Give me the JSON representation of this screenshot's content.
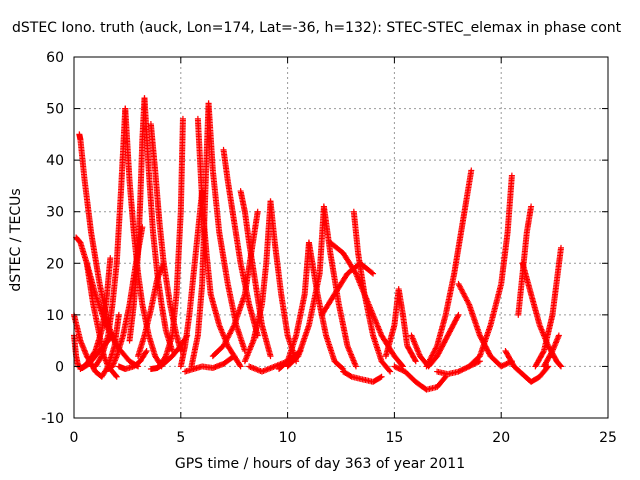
{
  "chart_data": {
    "type": "scatter",
    "title": "dSTEC Iono. truth (auck, Lon=174, Lat=-36, h=132): STEC-STEC_elemax in phase cont",
    "xlabel": "GPS time / hours of day 363 of year 2011",
    "ylabel": "dSTEC  / TECUs",
    "xlim": [
      0,
      25
    ],
    "ylim": [
      -10,
      60
    ],
    "xticks": [
      "0",
      "5",
      "10",
      "15",
      "20",
      "25"
    ],
    "yticks": [
      "-10",
      "0",
      "10",
      "20",
      "30",
      "40",
      "50",
      "60"
    ],
    "grid": true,
    "marker": "+",
    "color": "#ff0000",
    "arcs": [
      {
        "x": [
          0.0,
          0.1,
          0.2,
          0.4,
          0.7,
          1.0,
          1.4,
          1.8
        ],
        "y": [
          6,
          2,
          0,
          -0.3,
          0.5,
          2,
          4,
          6
        ]
      },
      {
        "x": [
          0.1,
          0.3,
          0.6,
          1.0,
          1.5,
          2.0,
          2.6,
          3.0
        ],
        "y": [
          25,
          24,
          20,
          14,
          8,
          4,
          1,
          0
        ]
      },
      {
        "x": [
          0.25,
          0.3,
          0.5,
          0.8,
          1.2,
          1.6,
          2.0
        ],
        "y": [
          45,
          44,
          36,
          26,
          16,
          8,
          4
        ]
      },
      {
        "x": [
          0.0,
          0.3,
          0.6,
          1.0,
          1.3,
          1.6,
          1.9,
          2.1
        ],
        "y": [
          10,
          5,
          2,
          -1,
          -2,
          0,
          4,
          10
        ]
      },
      {
        "x": [
          0.3,
          0.6,
          1.0,
          1.3,
          1.5,
          1.7
        ],
        "y": [
          -0.5,
          0.5,
          3,
          7,
          12,
          21
        ]
      },
      {
        "x": [
          0.6,
          0.9,
          1.2,
          1.4,
          1.6,
          1.8,
          2.0
        ],
        "y": [
          20,
          12,
          6,
          2,
          0,
          -1,
          -2
        ]
      },
      {
        "x": [
          1.0,
          1.3,
          1.6,
          1.8,
          2.0,
          2.2,
          2.4
        ],
        "y": [
          0,
          2,
          6,
          12,
          20,
          34,
          50
        ]
      },
      {
        "x": [
          1.6,
          1.8,
          2.0,
          2.3,
          2.6,
          2.9,
          3.2
        ],
        "y": [
          -0.5,
          0,
          2,
          6,
          12,
          20,
          27
        ]
      },
      {
        "x": [
          2.1,
          2.4,
          2.8,
          3.1,
          3.4
        ],
        "y": [
          0,
          -0.5,
          0,
          1,
          3
        ]
      },
      {
        "x": [
          2.4,
          2.6,
          2.8,
          3.0,
          3.2,
          3.5,
          3.8,
          4.1
        ],
        "y": [
          50,
          36,
          26,
          18,
          12,
          6,
          2,
          0
        ]
      },
      {
        "x": [
          2.6,
          2.8,
          3.0,
          3.1,
          3.2,
          3.3
        ],
        "y": [
          5,
          12,
          22,
          32,
          44,
          52
        ]
      },
      {
        "x": [
          3.3,
          3.5,
          3.7,
          3.9,
          4.1,
          4.3,
          4.6
        ],
        "y": [
          52,
          38,
          26,
          18,
          12,
          7,
          3
        ]
      },
      {
        "x": [
          3.0,
          3.3,
          3.6,
          3.9,
          4.2
        ],
        "y": [
          2,
          6,
          11,
          17,
          20
        ]
      },
      {
        "x": [
          3.6,
          3.8,
          4.0,
          4.2,
          4.5,
          4.8,
          5.0
        ],
        "y": [
          47,
          38,
          28,
          20,
          12,
          6,
          3
        ]
      },
      {
        "x": [
          3.6,
          3.9,
          4.2,
          4.6,
          5.0,
          5.3
        ],
        "y": [
          -0.5,
          -0.3,
          0.5,
          2,
          4,
          6
        ]
      },
      {
        "x": [
          4.0,
          4.3,
          4.6,
          4.8,
          5.0,
          5.1
        ],
        "y": [
          0,
          2,
          6,
          14,
          30,
          48
        ]
      },
      {
        "x": [
          5.0,
          5.2,
          5.4,
          5.6,
          5.8,
          6.0
        ],
        "y": [
          0,
          4,
          10,
          18,
          26,
          34
        ]
      },
      {
        "x": [
          5.8,
          5.9,
          6.0,
          6.2,
          6.4,
          6.8,
          7.2,
          7.8
        ],
        "y": [
          48,
          40,
          32,
          22,
          14,
          8,
          4,
          0
        ]
      },
      {
        "x": [
          5.5,
          5.8,
          6.0,
          6.1,
          6.2,
          6.3
        ],
        "y": [
          0,
          6,
          16,
          28,
          40,
          51
        ]
      },
      {
        "x": [
          6.3,
          6.5,
          6.8,
          7.2,
          7.6,
          8.0
        ],
        "y": [
          51,
          38,
          26,
          16,
          8,
          3
        ]
      },
      {
        "x": [
          5.2,
          5.6,
          6.0,
          6.5,
          7.0,
          7.5
        ],
        "y": [
          -1,
          -0.5,
          0,
          -0.3,
          0.5,
          2
        ]
      },
      {
        "x": [
          7.0,
          7.2,
          7.5,
          7.8,
          8.2,
          8.6
        ],
        "y": [
          42,
          36,
          28,
          20,
          12,
          6
        ]
      },
      {
        "x": [
          6.5,
          7.0,
          7.5,
          8.0,
          8.3,
          8.6
        ],
        "y": [
          2,
          4,
          8,
          14,
          22,
          30
        ]
      },
      {
        "x": [
          7.8,
          8.0,
          8.2,
          8.5,
          8.8,
          9.2
        ],
        "y": [
          34,
          30,
          24,
          16,
          8,
          2
        ]
      },
      {
        "x": [
          8.0,
          8.4,
          8.8,
          9.0,
          9.2
        ],
        "y": [
          1,
          5,
          12,
          20,
          32
        ]
      },
      {
        "x": [
          9.2,
          9.4,
          9.7,
          10.0,
          10.4
        ],
        "y": [
          32,
          24,
          14,
          6,
          1
        ]
      },
      {
        "x": [
          8.2,
          8.8,
          9.4,
          10.0,
          10.6
        ],
        "y": [
          0,
          -1,
          0,
          1,
          3
        ]
      },
      {
        "x": [
          9.6,
          10.0,
          10.4,
          10.8,
          11.0
        ],
        "y": [
          -0.5,
          1,
          6,
          14,
          24
        ]
      },
      {
        "x": [
          11.0,
          11.4,
          11.8,
          12.2,
          12.6
        ],
        "y": [
          24,
          14,
          6,
          1,
          -0.5
        ]
      },
      {
        "x": [
          10.0,
          10.5,
          11.0,
          11.5,
          11.7
        ],
        "y": [
          0,
          2,
          8,
          18,
          31
        ]
      },
      {
        "x": [
          11.7,
          12.0,
          12.4,
          12.8,
          13.2
        ],
        "y": [
          31,
          22,
          12,
          4,
          0
        ]
      },
      {
        "x": [
          11.6,
          12.2,
          12.8,
          13.4,
          14.0
        ],
        "y": [
          10,
          14,
          18,
          20,
          18
        ]
      },
      {
        "x": [
          13.1,
          13.3,
          13.6,
          14.0,
          14.4,
          14.8
        ],
        "y": [
          30,
          22,
          14,
          6,
          1,
          -1
        ]
      },
      {
        "x": [
          12.6,
          13.0,
          13.5,
          14.0,
          14.4
        ],
        "y": [
          -1,
          -2,
          -2.5,
          -3,
          -2
        ]
      },
      {
        "x": [
          12.0,
          12.6,
          13.2,
          13.8,
          14.4,
          15.0,
          15.4
        ],
        "y": [
          24,
          22,
          18,
          12,
          6,
          2,
          0
        ]
      },
      {
        "x": [
          14.6,
          15.0,
          15.2,
          15.4,
          15.6,
          16.0
        ],
        "y": [
          2,
          8,
          15,
          10,
          4,
          1
        ]
      },
      {
        "x": [
          15.0,
          15.5,
          16.0,
          16.5,
          17.0,
          17.4
        ],
        "y": [
          0,
          -1,
          -3,
          -4.5,
          -4,
          -2
        ]
      },
      {
        "x": [
          15.8,
          16.2,
          16.6,
          17.0,
          17.5,
          18.0
        ],
        "y": [
          6,
          2,
          0,
          2,
          6,
          10
        ]
      },
      {
        "x": [
          16.5,
          17.0,
          17.4,
          17.8,
          18.2,
          18.6
        ],
        "y": [
          0,
          4,
          10,
          18,
          28,
          38
        ]
      },
      {
        "x": [
          17.0,
          17.5,
          18.0,
          18.5,
          19.0
        ],
        "y": [
          -1,
          -1.5,
          -1,
          0,
          1
        ]
      },
      {
        "x": [
          18.0,
          18.5,
          19.0,
          19.5,
          20.0,
          20.5
        ],
        "y": [
          16,
          12,
          6,
          2,
          0,
          1
        ]
      },
      {
        "x": [
          18.5,
          19.0,
          19.5,
          20.0,
          20.3,
          20.5
        ],
        "y": [
          0,
          2,
          8,
          16,
          26,
          37
        ]
      },
      {
        "x": [
          20.2,
          20.6,
          21.0,
          21.4,
          21.8,
          22.2
        ],
        "y": [
          3,
          0,
          -1.5,
          -3,
          -2,
          0
        ]
      },
      {
        "x": [
          20.8,
          21.0,
          21.2,
          21.4
        ],
        "y": [
          10,
          18,
          26,
          31
        ]
      },
      {
        "x": [
          21.0,
          21.4,
          21.8,
          22.2,
          22.6,
          22.8
        ],
        "y": [
          20,
          14,
          8,
          4,
          1,
          0
        ]
      },
      {
        "x": [
          21.6,
          22.0,
          22.4,
          22.8
        ],
        "y": [
          0,
          3,
          10,
          23
        ]
      },
      {
        "x": [
          22.0,
          22.4,
          22.7
        ],
        "y": [
          0,
          3,
          6
        ]
      }
    ]
  }
}
